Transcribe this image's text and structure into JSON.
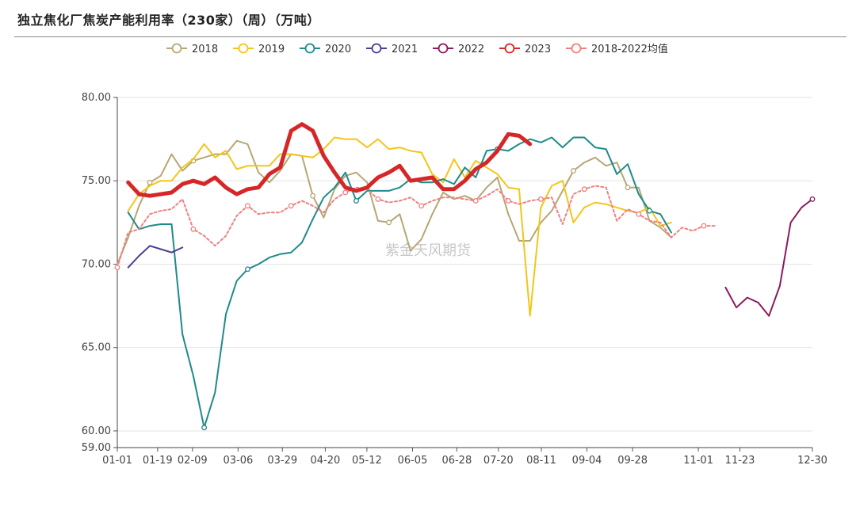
{
  "page_title": "独立焦化厂焦炭产能利用率（230家）（周）（万吨）",
  "watermark": "紫金天风期货",
  "chart_data": {
    "type": "line",
    "title": "独立焦化厂焦炭产能利用率（230家）（周）（万吨）",
    "ylim": [
      59,
      80
    ],
    "yticks": [
      59.0,
      60.0,
      65.0,
      70.0,
      75.0,
      80.0
    ],
    "ytick_labels": [
      "59.00",
      "60.00",
      "65.00",
      "70.00",
      "75.00",
      "80.00"
    ],
    "xticks": [
      {
        "label": "01-01",
        "week": 0
      },
      {
        "label": "01-19",
        "week": 3
      },
      {
        "label": "02-09",
        "week": 5.6
      },
      {
        "label": "03-06",
        "week": 9
      },
      {
        "label": "03-29",
        "week": 12.3
      },
      {
        "label": "04-20",
        "week": 15.5
      },
      {
        "label": "05-12",
        "week": 18.6
      },
      {
        "label": "06-05",
        "week": 22
      },
      {
        "label": "06-28",
        "week": 25.3
      },
      {
        "label": "07-20",
        "week": 28.4
      },
      {
        "label": "08-11",
        "week": 31.6
      },
      {
        "label": "09-04",
        "week": 35
      },
      {
        "label": "09-28",
        "week": 38.4
      },
      {
        "label": "11-01",
        "week": 43.3
      },
      {
        "label": "11-23",
        "week": 46.4
      },
      {
        "label": "12-30",
        "week": 51.8
      }
    ],
    "grid": "horizontal",
    "legend_position": "top-center",
    "series": [
      {
        "name": "2018",
        "color": "#b5a774",
        "width": 2,
        "dash": "",
        "values": [
          70,
          71.6,
          73.5,
          74.9,
          75.3,
          76.6,
          75.6,
          76.2,
          76.4,
          76.6,
          76.6,
          77.4,
          77.2,
          75.5,
          74.9,
          75.6,
          76.6,
          76.5,
          74.1,
          72.8,
          74.5,
          75.3,
          75.5,
          74.9,
          72.6,
          72.5,
          73,
          70.8,
          71.5,
          73,
          74.3,
          73.9,
          74.1,
          73.8,
          74.6,
          75.2,
          73,
          71.4,
          71.4,
          72.5,
          73.2,
          74.4,
          75.6,
          76.1,
          76.4,
          75.9,
          76.1,
          74.6,
          74.6,
          72.6,
          72.2,
          71.6
        ]
      },
      {
        "name": "2019",
        "color": "#f5c518",
        "width": 2,
        "dash": "",
        "values": [
          null,
          73.2,
          74.2,
          74.7,
          75,
          75,
          75.8,
          76.3,
          77.2,
          76.4,
          76.8,
          75.7,
          75.9,
          75.9,
          75.9,
          76.6,
          76.6,
          76.5,
          76.4,
          76.9,
          77.6,
          77.5,
          77.5,
          77,
          77.5,
          76.9,
          77,
          76.8,
          76.7,
          75.4,
          74.9,
          76.3,
          75.2,
          76.2,
          75.8,
          75.4,
          74.6,
          74.5,
          66.9,
          73.4,
          74.7,
          75,
          72.5,
          73.4,
          73.7,
          73.6,
          73.4,
          73.2,
          73.1,
          73.4,
          72.3,
          72.5
        ]
      },
      {
        "name": "2020",
        "color": "#1f8a8a",
        "width": 2,
        "dash": "",
        "values": [
          null,
          73.1,
          72.1,
          72.3,
          72.4,
          72.4,
          65.8,
          63.3,
          60.2,
          62.3,
          67,
          69,
          69.7,
          70,
          70.4,
          70.6,
          70.7,
          71.3,
          72.7,
          74,
          74.6,
          75.5,
          73.8,
          74.4,
          74.4,
          74.4,
          74.6,
          75.1,
          74.9,
          74.9,
          75.1,
          74.8,
          75.8,
          75.2,
          76.8,
          76.9,
          76.8,
          77.2,
          77.5,
          77.3,
          77.6,
          77,
          77.6,
          77.6,
          77,
          76.9,
          75.4,
          76,
          74.2,
          73.2,
          73,
          71.9
        ]
      },
      {
        "name": "2021",
        "color": "#4b3d8f",
        "width": 2,
        "dash": "",
        "values": [
          null,
          69.8,
          70.5,
          71.1,
          70.9,
          70.7,
          71
        ]
      },
      {
        "name": "2022",
        "color": "#8b1a5c",
        "width": 2,
        "dash": "",
        "values": [
          null,
          null,
          null,
          null,
          null,
          null,
          null,
          null,
          null,
          null,
          null,
          null,
          null,
          null,
          null,
          null,
          null,
          null,
          null,
          null,
          null,
          null,
          null,
          null,
          null,
          null,
          null,
          null,
          null,
          null,
          null,
          null,
          null,
          null,
          null,
          null,
          null,
          null,
          null,
          null,
          null,
          null,
          null,
          null,
          null,
          null,
          null,
          null,
          null,
          null,
          null,
          null,
          null,
          null,
          null,
          null,
          68.6,
          67.4,
          68,
          67.7,
          66.9,
          68.7,
          72.5,
          73.4,
          73.9
        ]
      },
      {
        "name": "2023",
        "color": "#d62728",
        "width": 5,
        "dash": "",
        "values": [
          null,
          74.9,
          74.2,
          74.1,
          74.2,
          74.3,
          74.8,
          75,
          74.8,
          75.2,
          74.6,
          74.2,
          74.5,
          74.6,
          75.4,
          75.8,
          78,
          78.4,
          78,
          76.5,
          75.5,
          74.6,
          74.4,
          74.6,
          75.2,
          75.5,
          75.9,
          75,
          75.1,
          75.2,
          74.5,
          74.5,
          75,
          75.7,
          76.1,
          76.8,
          77.8,
          77.7,
          77.2
        ]
      },
      {
        "name": "2018-2022均值",
        "color": "#f08080",
        "width": 2,
        "dash": "3 3",
        "values": [
          69.8,
          71.9,
          72.1,
          73,
          73.2,
          73.3,
          73.9,
          72.1,
          71.7,
          71.1,
          71.7,
          72.9,
          73.5,
          73,
          73.1,
          73.1,
          73.5,
          73.8,
          73.5,
          73.1,
          73.9,
          74.3,
          74.6,
          74.5,
          73.9,
          73.7,
          73.8,
          74,
          73.5,
          73.8,
          74,
          74,
          73.9,
          73.8,
          74.1,
          74.5,
          73.8,
          73.6,
          73.8,
          73.9,
          74,
          72.4,
          74.2,
          74.5,
          74.7,
          74.6,
          72.6,
          73.3,
          73,
          72.6,
          72.5,
          71.6,
          72.2,
          72,
          72.3,
          72.3
        ]
      }
    ],
    "marked_indices": {
      "2018": [
        3,
        7,
        18,
        25,
        42,
        47
      ],
      "2019": [],
      "2020": [
        8,
        12,
        22,
        35,
        49
      ],
      "2021": [
        0
      ],
      "2022": [
        64
      ],
      "2023": [],
      "2018-2022均值": [
        0,
        7,
        12,
        16,
        21,
        24,
        28,
        33,
        36,
        39,
        43,
        48,
        54
      ]
    }
  }
}
